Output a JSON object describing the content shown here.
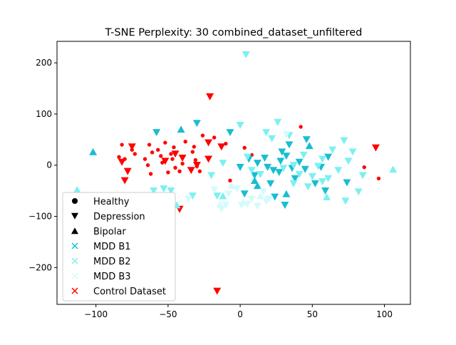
{
  "chart_data": {
    "type": "scatter",
    "title": "T-SNE Perplexity: 30 combined_dataset_unfiltered",
    "xlabel": "",
    "ylabel": "",
    "xlim": [
      -127,
      118
    ],
    "ylim": [
      -272,
      242
    ],
    "xticks": [
      -100,
      -50,
      0,
      50,
      100
    ],
    "yticks": [
      -200,
      -100,
      0,
      100,
      200
    ],
    "xtick_labels": [
      "−100",
      "−50",
      "0",
      "50",
      "100"
    ],
    "ytick_labels": [
      "−200",
      "−100",
      "0",
      "100",
      "200"
    ],
    "grid": false,
    "legend_position": "lower-left",
    "legend": {
      "markers": [
        {
          "label": "Healthy",
          "marker": "circle"
        },
        {
          "label": "Depression",
          "marker": "triangle-down"
        },
        {
          "label": "Bipolar",
          "marker": "triangle-up"
        }
      ],
      "colors": [
        {
          "label": "MDD B1",
          "color": "#17becf"
        },
        {
          "label": "MDD B2",
          "color": "#7df0f0"
        },
        {
          "label": "MDD B3",
          "color": "#d4fbfb"
        },
        {
          "label": "Control Dataset",
          "color": "#ff0000"
        }
      ]
    },
    "series": [
      {
        "name": "Control Dataset",
        "color": "#ff0000",
        "marker": "circle",
        "points": [
          [
            -82,
            40
          ],
          [
            -75,
            30
          ],
          [
            -84,
            16
          ],
          [
            -80,
            12
          ],
          [
            -73,
            22
          ],
          [
            -66,
            12
          ],
          [
            -63,
            40
          ],
          [
            -61,
            25
          ],
          [
            -64,
            0
          ],
          [
            -57,
            30
          ],
          [
            -55,
            18
          ],
          [
            -52,
            44
          ],
          [
            -54,
            5
          ],
          [
            -48,
            22
          ],
          [
            -46,
            35
          ],
          [
            -47,
            12
          ],
          [
            -45,
            -5
          ],
          [
            -40,
            3
          ],
          [
            -38,
            46
          ],
          [
            -33,
            26
          ],
          [
            -32,
            36
          ],
          [
            -31,
            10
          ],
          [
            -28,
            -12
          ],
          [
            -26,
            58
          ],
          [
            -18,
            54
          ],
          [
            -10,
            42
          ],
          [
            -7,
            -30
          ],
          [
            3,
            34
          ],
          [
            8,
            20
          ],
          [
            42,
            75
          ],
          [
            86,
            -4
          ],
          [
            96,
            -26
          ],
          [
            -42,
            -12
          ],
          [
            -50,
            -14
          ],
          [
            -62,
            -17
          ],
          [
            -30,
            -2
          ]
        ]
      },
      {
        "name": "Control Dataset",
        "color": "#ff0000",
        "marker": "triangle-down",
        "points": [
          [
            -82,
            6
          ],
          [
            -78,
            -12
          ],
          [
            -80,
            -30
          ],
          [
            -75,
            36
          ],
          [
            -52,
            8
          ],
          [
            -45,
            22
          ],
          [
            -40,
            14
          ],
          [
            -42,
            -86
          ],
          [
            -34,
            -10
          ],
          [
            -30,
            0
          ],
          [
            -22,
            12
          ],
          [
            -22,
            44
          ],
          [
            -21,
            134
          ],
          [
            -16,
            -246
          ],
          [
            -13,
            36
          ],
          [
            94,
            34
          ]
        ]
      },
      {
        "name": "MDD B1",
        "color": "#17becf",
        "marker": "triangle-down",
        "points": [
          [
            -58,
            64
          ],
          [
            -30,
            82
          ],
          [
            -7,
            64
          ],
          [
            0,
            -4
          ],
          [
            3,
            -56
          ],
          [
            6,
            12
          ],
          [
            10,
            -20
          ],
          [
            12,
            4
          ],
          [
            17,
            14
          ],
          [
            19,
            -4
          ],
          [
            21,
            -36
          ],
          [
            23,
            -10
          ],
          [
            24,
            -62
          ],
          [
            27,
            -14
          ],
          [
            28,
            8
          ],
          [
            29,
            26
          ],
          [
            31,
            -78
          ],
          [
            32,
            18
          ],
          [
            34,
            40
          ],
          [
            36,
            -6
          ],
          [
            38,
            -26
          ],
          [
            41,
            6
          ],
          [
            45,
            -8
          ],
          [
            46,
            50
          ],
          [
            52,
            -36
          ],
          [
            56,
            -4
          ],
          [
            59,
            -50
          ],
          [
            61,
            16
          ],
          [
            74,
            -34
          ]
        ]
      },
      {
        "name": "MDD B1",
        "color": "#17becf",
        "marker": "triangle-up",
        "points": [
          [
            -102,
            26
          ],
          [
            -41,
            70
          ],
          [
            10,
            -30
          ],
          [
            12,
            -40
          ],
          [
            32,
            -56
          ],
          [
            48,
            38
          ]
        ]
      },
      {
        "name": "MDD B2",
        "color": "#7df0f0",
        "marker": "triangle-down",
        "points": [
          [
            4,
            216
          ],
          [
            -16,
            -60
          ],
          [
            -20,
            -20
          ],
          [
            -12,
            4
          ],
          [
            0,
            78
          ],
          [
            5,
            16
          ],
          [
            8,
            -10
          ],
          [
            14,
            -18
          ],
          [
            18,
            64
          ],
          [
            22,
            52
          ],
          [
            26,
            84
          ],
          [
            30,
            -6
          ],
          [
            34,
            58
          ],
          [
            37,
            0
          ],
          [
            41,
            -18
          ],
          [
            44,
            20
          ],
          [
            47,
            -42
          ],
          [
            50,
            -22
          ],
          [
            54,
            -2
          ],
          [
            57,
            12
          ],
          [
            61,
            -26
          ],
          [
            64,
            30
          ],
          [
            68,
            -10
          ],
          [
            72,
            48
          ],
          [
            75,
            8
          ],
          [
            78,
            26
          ],
          [
            82,
            -52
          ],
          [
            85,
            -20
          ],
          [
            73,
            -70
          ],
          [
            57,
            -32
          ],
          [
            37,
            -36
          ],
          [
            -33,
            -60
          ],
          [
            -60,
            -50
          ],
          [
            -53,
            -46
          ],
          [
            -48,
            -50
          ]
        ]
      },
      {
        "name": "MDD B2",
        "color": "#7df0f0",
        "marker": "triangle-up",
        "points": [
          [
            -113,
            -48
          ],
          [
            -12,
            -60
          ],
          [
            60,
            -62
          ],
          [
            106,
            -8
          ],
          [
            -44,
            -78
          ]
        ]
      },
      {
        "name": "MDD B3",
        "color": "#d4fbfb",
        "marker": "triangle-down",
        "points": [
          [
            -36,
            -66
          ],
          [
            -10,
            -78
          ],
          [
            -8,
            -56
          ],
          [
            -2,
            -46
          ],
          [
            1,
            -78
          ],
          [
            5,
            -76
          ],
          [
            8,
            -66
          ],
          [
            12,
            -80
          ],
          [
            16,
            -52
          ],
          [
            18,
            -70
          ],
          [
            20,
            -66
          ],
          [
            -13,
            -86
          ],
          [
            -18,
            -48
          ],
          [
            32,
            60
          ]
        ]
      },
      {
        "name": "MDD B3",
        "color": "#d4fbfb",
        "marker": "triangle-up",
        "points": [
          [
            -14,
            -76
          ],
          [
            -6,
            -40
          ],
          [
            2,
            -72
          ],
          [
            14,
            -60
          ]
        ]
      }
    ]
  }
}
